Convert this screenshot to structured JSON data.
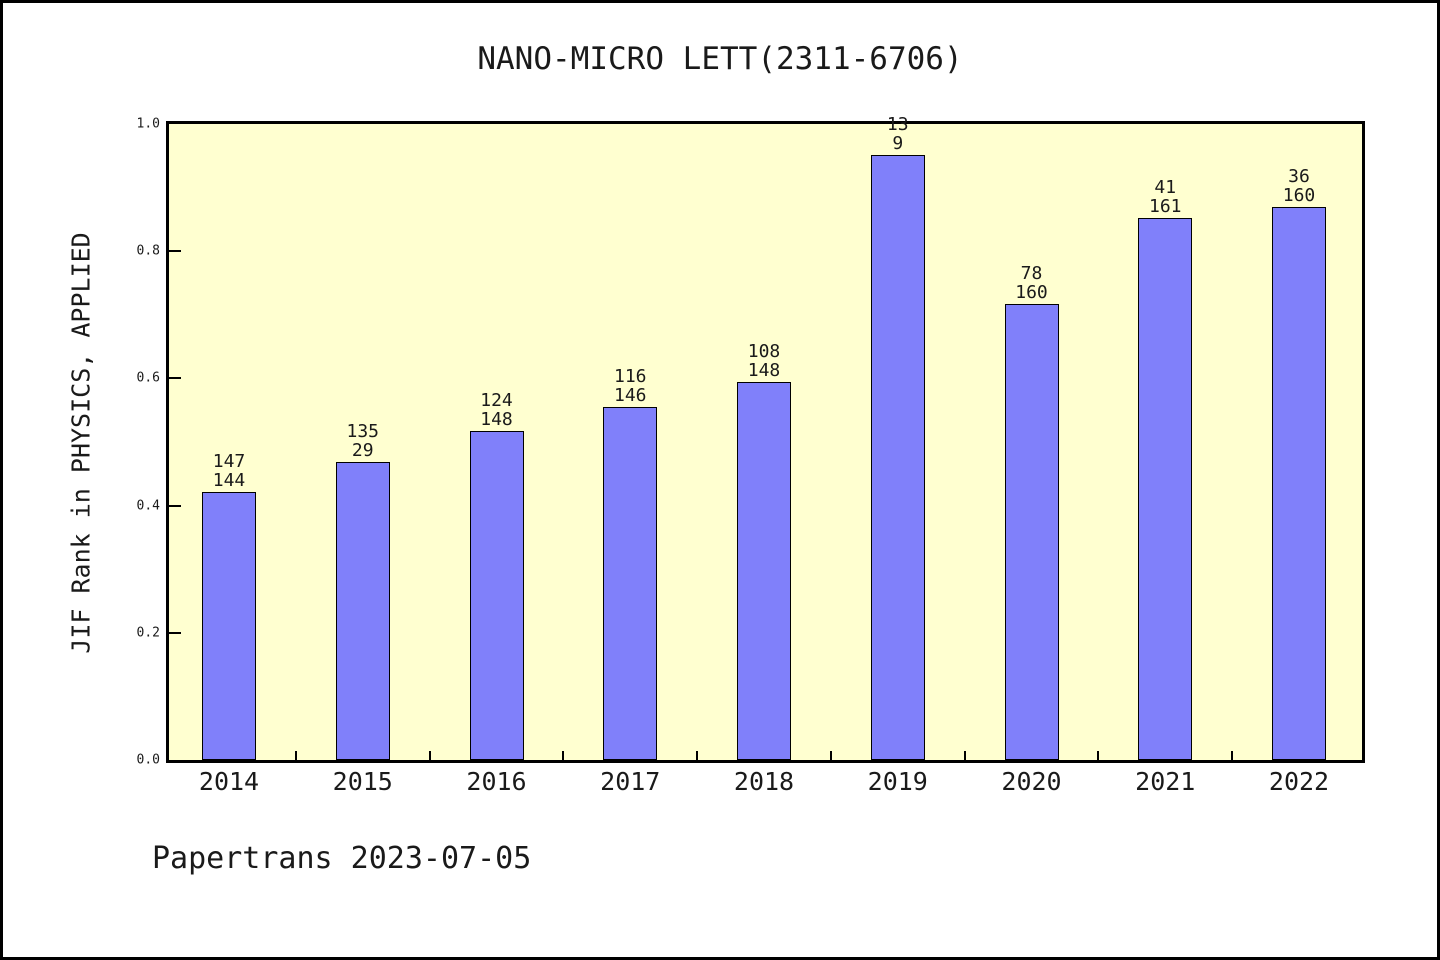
{
  "chart_data": {
    "type": "bar",
    "title": "NANO-MICRO LETT(2311-6706)",
    "xlabel": "",
    "ylabel": "JIF Rank in PHYSICS, APPLIED",
    "ylim": [
      0.0,
      1.0
    ],
    "yticks": [
      {
        "label": "0.0",
        "value": 0.0
      },
      {
        "label": "0.2",
        "value": 0.2
      },
      {
        "label": "0.4",
        "value": 0.4
      },
      {
        "label": "0.6",
        "value": 0.6
      },
      {
        "label": "0.8",
        "value": 0.8
      },
      {
        "label": "1.0",
        "value": 1.0
      }
    ],
    "grid": false,
    "legend": "none",
    "categories": [
      "2014",
      "2015",
      "2016",
      "2017",
      "2018",
      "2019",
      "2020",
      "2021",
      "2022"
    ],
    "values": [
      0.422,
      0.468,
      0.518,
      0.555,
      0.594,
      0.951,
      0.717,
      0.852,
      0.869
    ],
    "bar_labels": [
      [
        "147",
        "144"
      ],
      [
        "135",
        "29"
      ],
      [
        "124",
        "148"
      ],
      [
        "116",
        "146"
      ],
      [
        "108",
        "148"
      ],
      [
        "13",
        "9"
      ],
      [
        "78",
        "160"
      ],
      [
        "41",
        "161"
      ],
      [
        "36",
        "160"
      ]
    ],
    "colors": {
      "bar_fill": "#8080FA",
      "bar_edge": "#000000",
      "plot_background": "#FFFFD0",
      "frame": "#000000",
      "text": "#1a1a1a",
      "page_background": "#FFFFFF"
    }
  },
  "footer": {
    "text": "Papertrans 2023-07-05"
  }
}
